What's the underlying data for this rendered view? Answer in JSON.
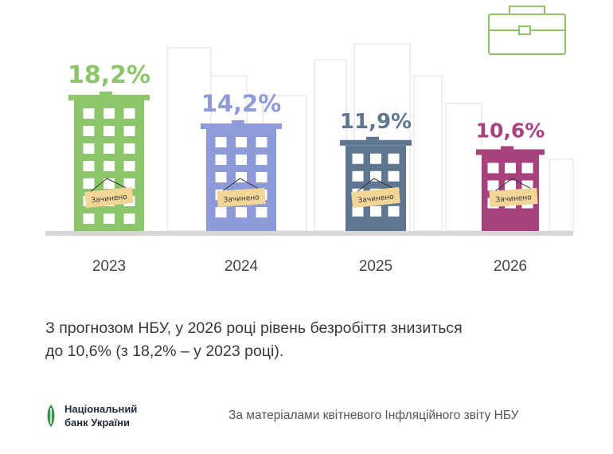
{
  "chart_data": {
    "type": "bar",
    "categories": [
      "2023",
      "2024",
      "2025",
      "2026"
    ],
    "values": [
      18.2,
      14.2,
      11.9,
      10.6
    ],
    "value_labels": [
      "18,2%",
      "14,2%",
      "11,9%",
      "10,6%"
    ],
    "series_colors": [
      "#8dc56b",
      "#8f9ad8",
      "#5f7690",
      "#a8427f"
    ],
    "sign_text": "Зачинено",
    "title": "",
    "xlabel": "",
    "ylabel": ""
  },
  "caption": {
    "line1": "З прогнозом НБУ, у 2026 році рівень безробіття знизиться",
    "line2": "до 10,6% (з 18,2% – у 2023 році)."
  },
  "footer": {
    "bank_line1": "Національний",
    "bank_line2": "банк України",
    "source": "За матеріалами квітневого Інфляційного звіту НБУ"
  }
}
